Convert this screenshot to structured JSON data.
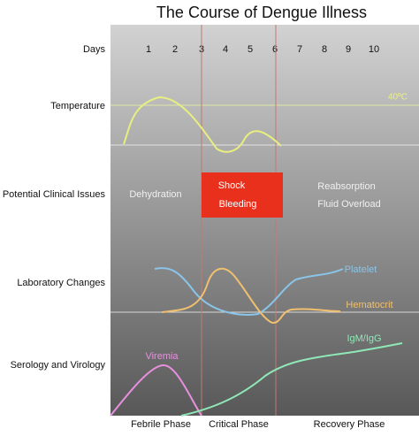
{
  "title": "The Course of Dengue Illness",
  "days_label": "Days",
  "days": [
    "1",
    "2",
    "3",
    "4",
    "5",
    "6",
    "7",
    "8",
    "9",
    "10"
  ],
  "row_labels": [
    "Temperature",
    "Potential Clinical Issues",
    "Laboratory Changes",
    "Serology and Virology"
  ],
  "temperature_marker": "40ºC",
  "clinical_issues": {
    "febrile": "Dehydration",
    "critical": [
      "Shock",
      "Bleeding"
    ],
    "recovery": [
      "Reabsorption",
      "Fluid Overload"
    ]
  },
  "lab_curves": [
    "Platelet",
    "Hematocrit"
  ],
  "serology_curves": [
    "Viremia",
    "IgM/IgG"
  ],
  "phases": [
    "Febrile Phase",
    "Critical Phase",
    "Recovery Phase"
  ]
}
